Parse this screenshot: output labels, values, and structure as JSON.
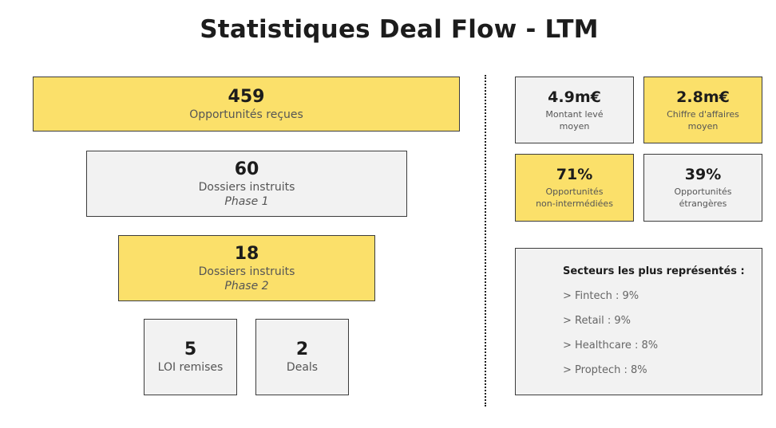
{
  "title": "Statistiques Deal Flow - LTM",
  "funnel": {
    "received": {
      "value": "459",
      "label": "Opportunités reçues"
    },
    "phase1": {
      "value": "60",
      "label": "Dossiers instruits",
      "sublabel": "Phase 1"
    },
    "phase2": {
      "value": "18",
      "label": "Dossiers instruits",
      "sublabel": "Phase 2"
    },
    "loi": {
      "value": "5",
      "label": "LOI remises"
    },
    "deals": {
      "value": "2",
      "label": "Deals"
    }
  },
  "kpis": {
    "avg_raised": {
      "value": "4.9m€",
      "label_line1": "Montant levé",
      "label_line2": "moyen"
    },
    "avg_revenue": {
      "value": "2.8m€",
      "label_line1": "Chiffre d'affaires",
      "label_line2": "moyen"
    },
    "non_intermediated": {
      "value": "71%",
      "label_line1": "Opportunités",
      "label_line2": "non-intermédiées"
    },
    "foreign": {
      "value": "39%",
      "label_line1": "Opportunités",
      "label_line2": "étrangères"
    }
  },
  "sectors": {
    "title": "Secteurs les plus représentés :",
    "items": [
      "> Fintech : 9%",
      "> Retail : 9%",
      "> Healthcare : 8%",
      "> Proptech : 8%"
    ]
  },
  "colors": {
    "yellow": "#fbe06a",
    "grey": "#f2f2f2",
    "border": "#3c3c3c",
    "text": "#1c1c1c"
  }
}
